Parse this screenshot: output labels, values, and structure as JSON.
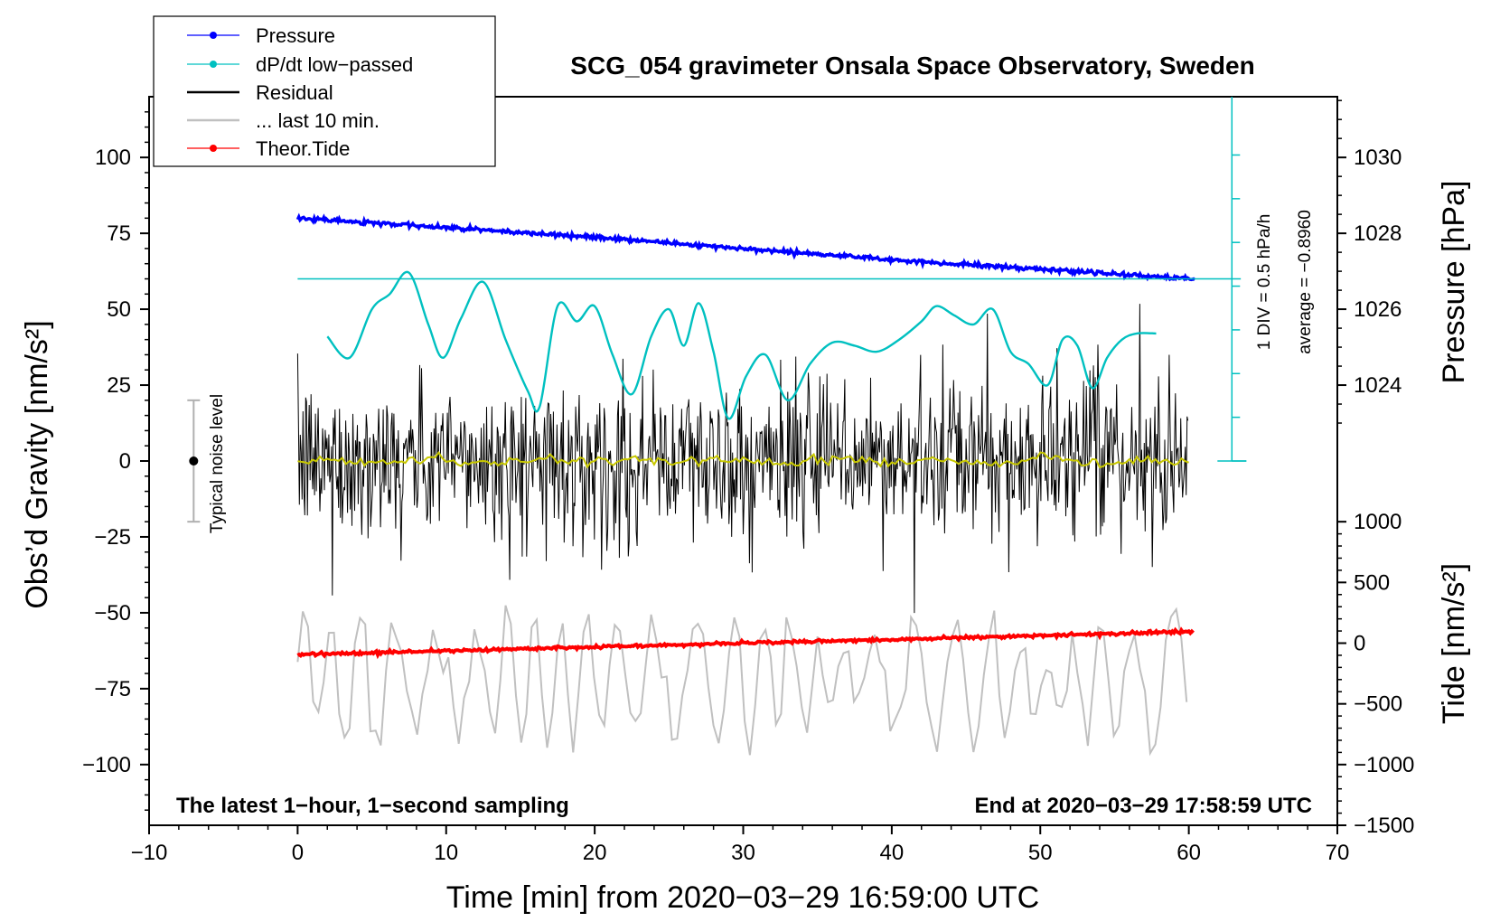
{
  "chart_data": {
    "type": "line",
    "title": "SCG_054 gravimeter Onsala Space Observatory, Sweden",
    "xlabel": "Time [min] from 2020−03−29 16:59:00 UTC",
    "ylabel_left": "Obs’d Gravity [nm/s²]",
    "ylabel_right_pressure": "Pressure [hPa]",
    "ylabel_right_tide": "Tide [nm/s²]",
    "xlim": [
      -10,
      70
    ],
    "ylim_left": [
      -120,
      120
    ],
    "x_ticks": [
      "−10",
      "0",
      "10",
      "20",
      "30",
      "40",
      "50",
      "60",
      "70"
    ],
    "y_ticks_left": [
      "−100",
      "−75",
      "−50",
      "−25",
      "0",
      "25",
      "50",
      "75",
      "100"
    ],
    "pressure_ticks": [
      "1024",
      "1026",
      "1028",
      "1030"
    ],
    "tide_ticks": [
      "−1500",
      "−1000",
      "−500",
      "0",
      "500",
      "1000"
    ],
    "pressure_axis": {
      "y0": 1022.0,
      "y0_gravity": 0,
      "hpa_per_unit": 0.08
    },
    "tide_axis": {
      "zero_gravity": -60,
      "nm_per_unit": 25
    },
    "annotation_left": "The latest 1−hour, 1−second sampling",
    "annotation_right": "End at 2020−03−29 17:58:59 UTC",
    "noise_label": "Typical noise level",
    "noise_bar": {
      "x": -7,
      "center": 0,
      "half_range": 20
    },
    "scale_label_1": "1 DIV = 0.5 hPa/h",
    "scale_label_2": "average = −0.8960",
    "dpdt_ref_level": 60,
    "series": [
      {
        "name": "Pressure",
        "axis": "pressure",
        "x": [
          0,
          10,
          20,
          30,
          40,
          50,
          60.4
        ],
        "values": [
          1028.4,
          1028.15,
          1027.9,
          1027.6,
          1027.3,
          1027.05,
          1026.8
        ]
      },
      {
        "name": "dP/dt low−passed",
        "axis": "gravity",
        "x": [
          2,
          3.5,
          5,
          6.2,
          7.5,
          8.8,
          9.8,
          11,
          12.5,
          14,
          15.5,
          16.3,
          17.5,
          18.8,
          20,
          21.2,
          22.5,
          23.8,
          25,
          26,
          27,
          28,
          29,
          30.2,
          31.5,
          33,
          34.5,
          36,
          37.5,
          39,
          40.5,
          42,
          43,
          44.2,
          45.5,
          46.8,
          48,
          49.2,
          50.5,
          51.5,
          52.5,
          53.5,
          54.5,
          55.5,
          56.5,
          57.8
        ],
        "values": [
          41,
          34,
          50,
          55,
          62,
          45,
          34,
          47,
          59,
          40,
          23,
          18,
          51,
          46,
          51,
          35,
          22,
          41,
          50,
          38,
          52,
          36,
          14,
          28,
          35,
          20,
          32,
          39,
          38,
          36,
          40,
          46,
          51,
          48,
          45,
          50,
          36,
          32,
          25,
          40,
          38,
          24,
          34,
          40,
          42,
          42
        ]
      },
      {
        "name": "Residual",
        "axis": "gravity",
        "x_range": [
          0,
          60
        ],
        "mean": 0,
        "amplitude": 22
      },
      {
        "name": "... last 10 min.",
        "axis": "gravity",
        "x_range": [
          0,
          60
        ],
        "mean": -72,
        "amplitude": 22
      },
      {
        "name": "Theor.Tide",
        "axis": "tide",
        "x": [
          0,
          60.4
        ],
        "values": [
          -95,
          95
        ]
      }
    ],
    "legend": [
      {
        "label": "Pressure",
        "color": "#0000ff",
        "marker": "dot"
      },
      {
        "label": "dP/dt low−passed",
        "color": "#00c0c0",
        "marker": "dot"
      },
      {
        "label": "Residual",
        "color": "#000000",
        "marker": "none"
      },
      {
        "label": "... last 10 min.",
        "color": "#c0c0c0",
        "marker": "none"
      },
      {
        "label": "Theor.Tide",
        "color": "#ff0000",
        "marker": "dot"
      }
    ],
    "legend_position": "top-left",
    "colors": {
      "pressure": "#0000ff",
      "dpdt": "#00c0c0",
      "residual": "#000000",
      "residual_mean": "#c8c800",
      "last10": "#c0c0c0",
      "tide": "#ff0000",
      "noise_bar": "#b0b0b0"
    }
  }
}
